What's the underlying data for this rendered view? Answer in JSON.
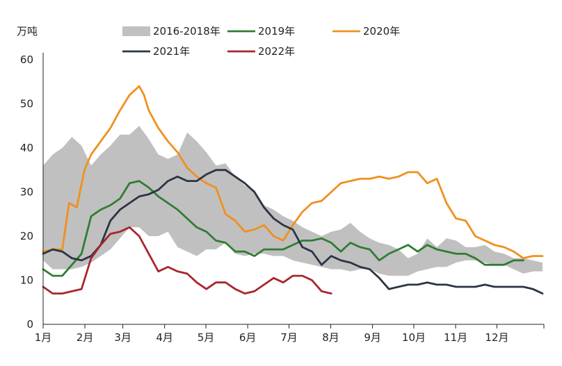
{
  "chart_data": {
    "type": "line",
    "ylabel": "万吨",
    "ylim": [
      0,
      60
    ],
    "yticks": [
      "0",
      "10",
      "20",
      "30",
      "40",
      "50",
      "60"
    ],
    "xlim": [
      0,
      52
    ],
    "months": [
      "1月",
      "2月",
      "3月",
      "4月",
      "5月",
      "6月",
      "7月",
      "8月",
      "9月",
      "10月",
      "11月",
      "12月"
    ],
    "month_weeks": [
      0,
      4.35,
      8.3,
      12.65,
      16.95,
      21.3,
      25.6,
      29.95,
      34.3,
      38.6,
      42.95,
      47.25
    ],
    "legend_position": "top",
    "grid": false,
    "band": {
      "name": "2016-2018年",
      "color": "#c0c0c0",
      "x": [
        0,
        1,
        2,
        3,
        4,
        5,
        6,
        7,
        8,
        9,
        10,
        11,
        12,
        13,
        14,
        15,
        16,
        17,
        18,
        19,
        20,
        21,
        22,
        23,
        24,
        25,
        26,
        27,
        28,
        29,
        30,
        31,
        32,
        33,
        34,
        35,
        36,
        37,
        38,
        39,
        40,
        41,
        42,
        43,
        44,
        45,
        46,
        47,
        48,
        49,
        50,
        51,
        52
      ],
      "low": [
        14.5,
        12.5,
        12.5,
        12.5,
        13,
        14,
        15.5,
        17,
        19.5,
        22,
        22,
        20,
        20,
        21,
        17.5,
        16.5,
        15.5,
        17,
        17,
        18.5,
        16,
        15.5,
        16,
        16,
        15.5,
        15.5,
        14.5,
        14,
        13.5,
        13,
        12.5,
        12.5,
        12,
        12.5,
        12.5,
        11.5,
        11,
        11,
        11,
        12,
        12.5,
        13,
        13,
        14,
        14.5,
        14.5,
        14,
        13.5,
        13.5,
        12.5,
        11.5,
        12,
        12
      ],
      "high": [
        36,
        38.5,
        40,
        42.5,
        40.5,
        36,
        38.5,
        40.5,
        43,
        43,
        45,
        42,
        38.5,
        37.5,
        38.5,
        43.5,
        41.5,
        39,
        36,
        36.5,
        33.5,
        31.5,
        30.5,
        27,
        26,
        24.5,
        23.5,
        22,
        21,
        20,
        21,
        21.5,
        23,
        21,
        19.5,
        18.5,
        18,
        17,
        15,
        16,
        19.5,
        17.5,
        19.5,
        19,
        17.5,
        17.5,
        18,
        16.5,
        16,
        15,
        15,
        14.5,
        14
      ]
    },
    "series": [
      {
        "name": "2019年",
        "color": "#2e7d32",
        "x": [
          0,
          1,
          2,
          3,
          4,
          5,
          6,
          7,
          8,
          9,
          10,
          11,
          12,
          13,
          14,
          15,
          16,
          17,
          18,
          19,
          20,
          21,
          22,
          23,
          24,
          25,
          26,
          27,
          28,
          29,
          30,
          31,
          32,
          33,
          34,
          35,
          36,
          37,
          38,
          39,
          40,
          41,
          42,
          43,
          44,
          45,
          46,
          47,
          48,
          49,
          50
        ],
        "y": [
          12.5,
          11,
          11,
          13.5,
          16,
          24.5,
          26,
          27,
          28.5,
          32,
          32.5,
          31,
          29,
          27.5,
          26,
          24,
          22,
          21,
          19,
          18.5,
          16.5,
          16.5,
          15.5,
          17,
          17,
          17,
          18,
          19,
          19,
          19.5,
          18.5,
          16.5,
          18.5,
          17.5,
          17,
          14.5,
          16,
          17,
          18,
          16.5,
          18,
          17,
          16.5,
          16,
          16,
          15,
          13.5,
          13.5,
          13.5,
          14.5,
          14.5
        ]
      },
      {
        "name": "2020年",
        "color": "#f0901e",
        "x": [
          0,
          1,
          2,
          2.7,
          3.5,
          4.3,
          5,
          6,
          7,
          8,
          9,
          10,
          10.5,
          11,
          12,
          13,
          14,
          15,
          16,
          17,
          18,
          19,
          20,
          21,
          22,
          23,
          24,
          25,
          26,
          27,
          28,
          29,
          30,
          31,
          32,
          33,
          34,
          35,
          36,
          37,
          38,
          39,
          40,
          41,
          42,
          43,
          44,
          45,
          46,
          47,
          48,
          49,
          50,
          51,
          52
        ],
        "y": [
          16.5,
          17,
          17,
          27.5,
          26.5,
          35,
          38.5,
          41.5,
          44.5,
          48.5,
          52,
          54,
          52,
          48.5,
          44.5,
          41.5,
          39,
          35.5,
          33.5,
          32,
          31,
          25,
          23.5,
          21,
          21.5,
          22.5,
          20,
          19,
          22.5,
          25.5,
          27.5,
          28,
          30,
          32,
          32.5,
          33,
          33,
          33.5,
          33,
          33.5,
          34.5,
          34.5,
          32,
          33,
          27.5,
          24,
          23.5,
          20,
          19,
          18,
          17.5,
          16.5,
          15,
          15.5,
          15.5
        ]
      },
      {
        "name": "2021年",
        "color": "#2b3444",
        "x": [
          0,
          1,
          2,
          3,
          4,
          5,
          6,
          7,
          8,
          9,
          10,
          11,
          12,
          13,
          14,
          15,
          16,
          17,
          18,
          19,
          20,
          21,
          22,
          23,
          24,
          25,
          26,
          27,
          28,
          29,
          30,
          31,
          32,
          33,
          34,
          35,
          36,
          37,
          38,
          39,
          40,
          41,
          42,
          43,
          44,
          45,
          46,
          47,
          48,
          49,
          50,
          51,
          52
        ],
        "y": [
          16,
          17,
          16.5,
          15,
          14.5,
          15.5,
          18,
          23.5,
          26,
          27.5,
          29,
          29.5,
          30.5,
          32.5,
          33.5,
          32.5,
          32.5,
          34,
          35,
          35,
          33.5,
          32,
          30,
          26.5,
          24,
          22.5,
          21.5,
          17.5,
          16.5,
          13.5,
          15.5,
          14.5,
          14,
          13,
          12.5,
          10.5,
          8,
          8.5,
          9,
          9,
          9.5,
          9,
          9,
          8.5,
          8.5,
          8.5,
          9,
          8.5,
          8.5,
          8.5,
          8.5,
          8,
          7
        ]
      },
      {
        "name": "2022年",
        "color": "#a7262b",
        "x": [
          0,
          1,
          2,
          3,
          4,
          5,
          6,
          7,
          8,
          9,
          10,
          11,
          12,
          13,
          14,
          15,
          16,
          17,
          18,
          19,
          20,
          21,
          22,
          23,
          24,
          25,
          26,
          27,
          28,
          29,
          30
        ],
        "y": [
          8.5,
          7,
          7,
          7.5,
          8,
          15,
          18,
          20.5,
          21,
          22,
          20,
          16,
          12,
          13,
          12,
          11.5,
          9.5,
          8,
          9.5,
          9.5,
          8,
          7,
          7.5,
          9,
          10.5,
          9.5,
          11,
          11,
          10,
          7.5,
          7
        ]
      }
    ],
    "legend": [
      {
        "label": "2016-2018年",
        "kind": "band",
        "color": "#c0c0c0"
      },
      {
        "label": "2019年",
        "kind": "line",
        "color": "#2e7d32"
      },
      {
        "label": "2020年",
        "kind": "line",
        "color": "#f0901e"
      },
      {
        "label": "2021年",
        "kind": "line",
        "color": "#2b3444"
      },
      {
        "label": "2022年",
        "kind": "line",
        "color": "#a7262b"
      }
    ]
  }
}
